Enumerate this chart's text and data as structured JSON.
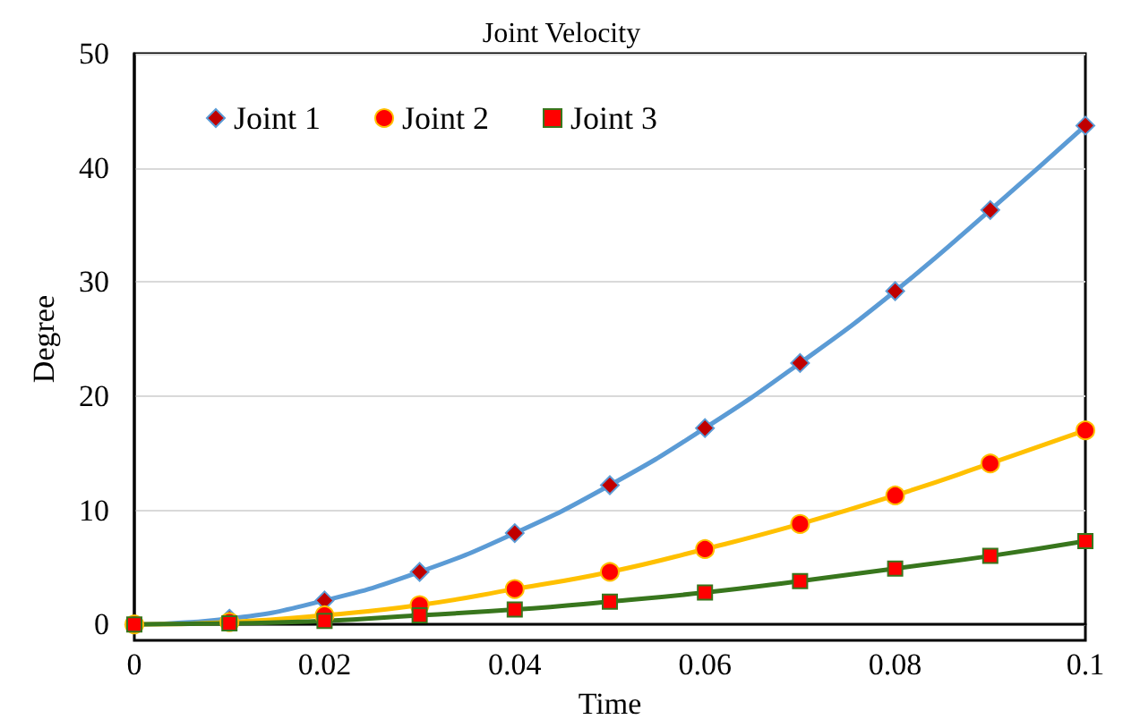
{
  "chart_data": {
    "type": "line",
    "title": "Joint Velocity",
    "xlabel": "Time",
    "ylabel": "Degree",
    "x": [
      0,
      0.01,
      0.02,
      0.03,
      0.04,
      0.05,
      0.06,
      0.07,
      0.08,
      0.09,
      0.1
    ],
    "series": [
      {
        "name": "Joint 1",
        "color": "#5b9bd5",
        "marker": "diamond",
        "values": [
          0,
          0.5,
          2.1,
          4.6,
          8,
          12.2,
          17.2,
          22.9,
          29.2,
          36.3,
          43.7
        ]
      },
      {
        "name": "Joint 2",
        "color": "#ffc000",
        "marker": "circle",
        "values": [
          0,
          0.2,
          0.8,
          1.7,
          3.1,
          4.6,
          6.6,
          8.8,
          11.3,
          14.1,
          17
        ]
      },
      {
        "name": "Joint 3",
        "color": "#38761d",
        "marker": "square",
        "values": [
          0,
          0.1,
          0.3,
          0.8,
          1.3,
          2,
          2.8,
          3.8,
          4.9,
          6,
          7.3
        ]
      }
    ],
    "xlim": [
      0,
      0.1
    ],
    "xticks": [
      0,
      0.02,
      0.04,
      0.06,
      0.08,
      0.1
    ],
    "ylim": [
      0,
      50
    ],
    "yticks": [
      0,
      10,
      20,
      30,
      40,
      50
    ],
    "grid": "y",
    "legend": "top left"
  }
}
